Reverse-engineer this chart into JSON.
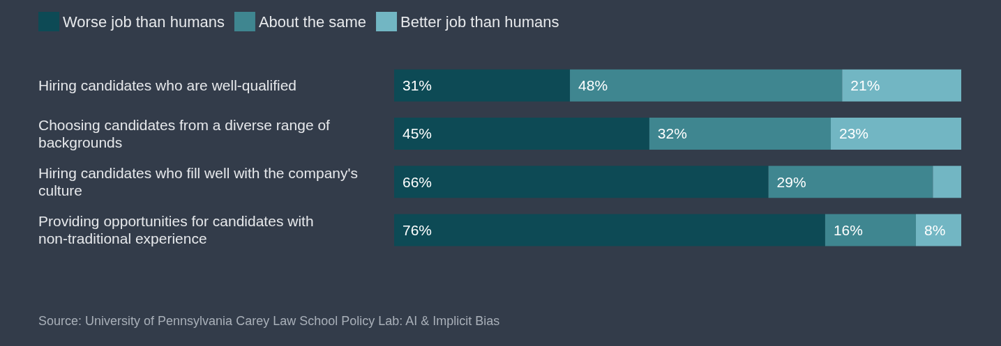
{
  "chart_data": {
    "type": "bar",
    "orientation": "horizontal",
    "stacked": true,
    "legend": "top left",
    "categories": [
      "Hiring candidates who are well-qualified",
      "Choosing candidates from a diverse range of backgrounds",
      "Hiring candidates who fill well with the company's culture",
      "Providing opportunities for candidates with non-traditional experience"
    ],
    "series": [
      {
        "name": "Worse job than humans",
        "color": "#0d4a55",
        "values": [
          31,
          45,
          66,
          76
        ],
        "value_labels": [
          "31%",
          "45%",
          "66%",
          "76%"
        ]
      },
      {
        "name": "About the same",
        "color": "#3f8690",
        "values": [
          48,
          32,
          29,
          16
        ],
        "value_labels": [
          "48%",
          "32%",
          "29%",
          "16%"
        ]
      },
      {
        "name": "Better job than humans",
        "color": "#72b6c3",
        "values": [
          21,
          23,
          5,
          8
        ],
        "value_labels": [
          "21%",
          "23%",
          null,
          "8%"
        ]
      }
    ],
    "annotations": [
      "Source: University of Pennsylvania Carey Law School Policy Lab: AI & Implicit Bias"
    ]
  }
}
